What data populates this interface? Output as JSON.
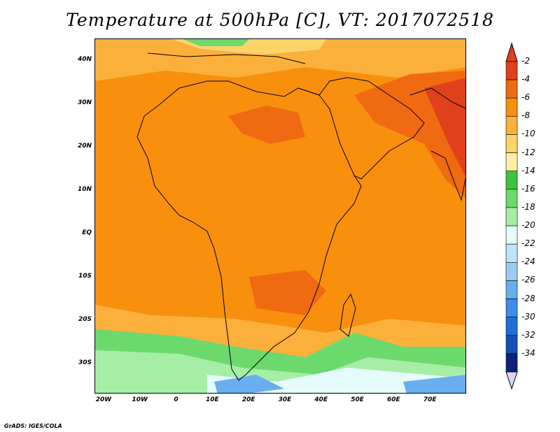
{
  "title": "Temperature at 500hPa [C], VT: 2017072518",
  "footer": "GrADS: IGES/COLA",
  "lat_labels": [
    {
      "text": "40N",
      "lat": 40
    },
    {
      "text": "30N",
      "lat": 30
    },
    {
      "text": "20N",
      "lat": 20
    },
    {
      "text": "10N",
      "lat": 10
    },
    {
      "text": "EQ",
      "lat": 0
    },
    {
      "text": "10S",
      "lat": -10
    },
    {
      "text": "20S",
      "lat": -20
    },
    {
      "text": "30S",
      "lat": -30
    }
  ],
  "lon_labels": [
    {
      "text": "20W",
      "lon": -20
    },
    {
      "text": "10W",
      "lon": -10
    },
    {
      "text": "0",
      "lon": 0
    },
    {
      "text": "10E",
      "lon": 10
    },
    {
      "text": "20E",
      "lon": 20
    },
    {
      "text": "30E",
      "lon": 30
    },
    {
      "text": "40E",
      "lon": 40
    },
    {
      "text": "50E",
      "lon": 50
    },
    {
      "text": "60E",
      "lon": 60
    },
    {
      "text": "70E",
      "lon": 70
    }
  ],
  "map_extent": {
    "lon_min": -22.5,
    "lon_max": 80,
    "lat_min": -37,
    "lat_max": 45
  },
  "colorbar": {
    "labels": [
      "-2",
      "-4",
      "-6",
      "-8",
      "-10",
      "-12",
      "-14",
      "-16",
      "-18",
      "-20",
      "-22",
      "-24",
      "-26",
      "-28",
      "-30",
      "-32",
      "-34"
    ],
    "colors": [
      "#e0401c",
      "#f06a12",
      "#f8900e",
      "#fbb03c",
      "#fcd46a",
      "#fdf0a6",
      "#3ec43e",
      "#6cd96c",
      "#a6eea6",
      "#e6fbfb",
      "#bfe3f7",
      "#9bcbf0",
      "#6aaef0",
      "#3c8ee8",
      "#1f6fd8",
      "#1550b8",
      "#0c2278"
    ],
    "top_arrow_color": "#e0401c",
    "bottom_arrow_color": "#ddd5f5"
  }
}
